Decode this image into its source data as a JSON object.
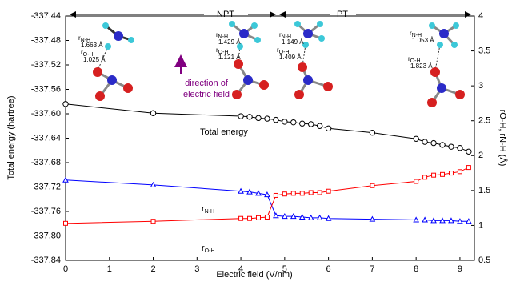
{
  "chart_data": {
    "type": "line",
    "xlabel": "Electric field (V/nm)",
    "ylabel": "Total energy (hartree)",
    "y2label": "rO-H, rN-H (Å)",
    "x": [
      0,
      2,
      4,
      4.2,
      4.4,
      4.6,
      4.8,
      5,
      5.2,
      5.4,
      5.6,
      5.8,
      6,
      7,
      8,
      8.2,
      8.4,
      8.6,
      8.8,
      9,
      9.2
    ],
    "xlim": [
      0,
      9.33
    ],
    "xticks": [
      0,
      1,
      2,
      3,
      4,
      5,
      6,
      7,
      8,
      9
    ],
    "ylim": [
      -337.84,
      -337.44
    ],
    "yticks": [
      -337.44,
      -337.48,
      -337.52,
      -337.56,
      {
        "value": -337.6,
        "label": "-337.60"
      },
      -337.64,
      -337.68,
      -337.72,
      -337.76,
      {
        "value": -337.8,
        "label": "-337.80"
      },
      -337.84
    ],
    "y2lim": [
      0.5,
      4
    ],
    "y2ticks": [
      0.5,
      1,
      1.5,
      2,
      2.5,
      3,
      3.5,
      4
    ],
    "series": [
      {
        "name": "Total energy",
        "color": "#000000",
        "marker": "circle",
        "axis": "y",
        "values": [
          -337.584,
          -337.599,
          -337.604,
          -337.605,
          -337.607,
          -337.608,
          -337.61,
          -337.613,
          -337.614,
          -337.616,
          -337.617,
          -337.62,
          -337.624,
          -337.631,
          -337.641,
          -337.646,
          -337.648,
          -337.651,
          -337.654,
          -337.656,
          -337.662
        ]
      },
      {
        "name": "r",
        "subscript": "N-H",
        "color": "#0000ff",
        "marker": "triangle",
        "axis": "y2",
        "values": [
          1.65,
          1.58,
          1.49,
          1.48,
          1.46,
          1.44,
          1.14,
          1.13,
          1.13,
          1.12,
          1.11,
          1.11,
          1.1,
          1.09,
          1.08,
          1.08,
          1.07,
          1.07,
          1.07,
          1.06,
          1.06
        ]
      },
      {
        "name": "r",
        "subscript": "O-H",
        "color": "#ff0000",
        "marker": "square",
        "axis": "y2",
        "values": [
          1.03,
          1.06,
          1.1,
          1.1,
          1.11,
          1.12,
          1.43,
          1.45,
          1.46,
          1.46,
          1.47,
          1.47,
          1.49,
          1.57,
          1.63,
          1.69,
          1.72,
          1.73,
          1.75,
          1.77,
          1.83
        ]
      }
    ],
    "annotations": {
      "npt": "NPT",
      "pt": "PT",
      "field_line1": "direction of",
      "field_line2": "electric field"
    },
    "bond_symbols": {
      "r": "r",
      "nh": "N-H",
      "oh": "O-H"
    },
    "structures": [
      {
        "nh": "1.663 Å",
        "oh": "1.025 Å"
      },
      {
        "nh": "1.429 Å",
        "oh": "1.121 Å"
      },
      {
        "nh": "1.149 Å",
        "oh": "1.409 Å"
      },
      {
        "nh": "1.053 Å",
        "oh": "1.823 Å"
      }
    ]
  }
}
